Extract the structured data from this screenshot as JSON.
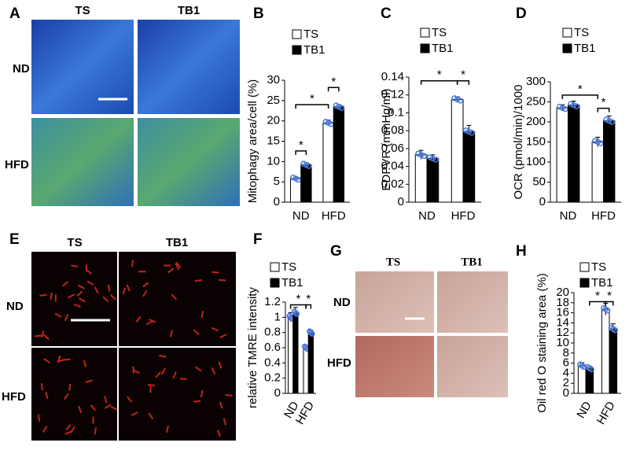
{
  "image_panels": [
    {
      "label": "A",
      "columns": [
        "TS",
        "TB1"
      ],
      "rows": [
        "ND",
        "HFD"
      ]
    },
    {
      "label": "E",
      "columns": [
        "TS",
        "TB1"
      ],
      "rows": [
        "ND",
        "HFD"
      ]
    },
    {
      "label": "G",
      "columns": [
        "TS",
        "TB1"
      ],
      "rows": [
        "ND",
        "HFD"
      ]
    }
  ],
  "chart_data": [
    {
      "type": "bar",
      "label": "B",
      "y_label": "Mitophagy area/cell (%)",
      "categories": [
        "ND",
        "HFD"
      ],
      "series": [
        {
          "name": "TS",
          "color": "#ffffff",
          "values": [
            5.8,
            19.5
          ],
          "errors": [
            0.4,
            0.7
          ]
        },
        {
          "name": "TB1",
          "color": "#000000",
          "values": [
            9.2,
            23.5
          ],
          "errors": [
            0.5,
            0.5
          ]
        }
      ],
      "ylim": [
        0,
        30
      ],
      "yticks": [
        0,
        5,
        10,
        15,
        20,
        25,
        30
      ],
      "annotations": [
        "*",
        "*",
        "*"
      ]
    },
    {
      "type": "bar",
      "label": "C",
      "y_label": "EDPVR (mmHg/ml)",
      "categories": [
        "ND",
        "HFD"
      ],
      "series": [
        {
          "name": "TS",
          "color": "#ffffff",
          "values": [
            0.053,
            0.115
          ],
          "errors": [
            0.005,
            0.003
          ]
        },
        {
          "name": "TB1",
          "color": "#000000",
          "values": [
            0.049,
            0.079
          ],
          "errors": [
            0.004,
            0.007
          ]
        }
      ],
      "ylim": [
        0,
        0.14
      ],
      "yticks": [
        0,
        0.02,
        0.04,
        0.06,
        0.08,
        0.1,
        0.12,
        0.14
      ],
      "annotations": [
        "*",
        "*"
      ]
    },
    {
      "type": "bar",
      "label": "D",
      "y_label": "OCR (pmol/min)/1000",
      "categories": [
        "ND",
        "HFD"
      ],
      "series": [
        {
          "name": "TS",
          "color": "#ffffff",
          "values": [
            235,
            150
          ],
          "errors": [
            8,
            12
          ]
        },
        {
          "name": "TB1",
          "color": "#000000",
          "values": [
            242,
            203
          ],
          "errors": [
            10,
            12
          ]
        }
      ],
      "ylim": [
        0,
        300
      ],
      "yticks": [
        0,
        50,
        100,
        150,
        200,
        250,
        300
      ],
      "annotations": [
        "*",
        "*"
      ]
    },
    {
      "type": "bar",
      "label": "F",
      "y_label": "relative TMRE intensity",
      "categories": [
        "ND",
        "HFD"
      ],
      "series": [
        {
          "name": "TS",
          "color": "#ffffff",
          "values": [
            1.0,
            0.6
          ],
          "errors": [
            0.06,
            0.03
          ]
        },
        {
          "name": "TB1",
          "color": "#000000",
          "values": [
            1.06,
            0.8
          ],
          "errors": [
            0.07,
            0.03
          ]
        }
      ],
      "ylim": [
        0,
        1.2
      ],
      "yticks": [
        0,
        0.2,
        0.4,
        0.6,
        0.8,
        1,
        1.2
      ],
      "annotations": [
        "*",
        "*"
      ]
    },
    {
      "type": "bar",
      "label": "H",
      "y_label": "Oil red O staining area (%)",
      "categories": [
        "ND",
        "HFD"
      ],
      "series": [
        {
          "name": "TS",
          "color": "#ffffff",
          "values": [
            5.5,
            16.7
          ],
          "errors": [
            0.6,
            1.2
          ]
        },
        {
          "name": "TB1",
          "color": "#000000",
          "values": [
            5.0,
            12.8
          ],
          "errors": [
            0.4,
            1.0
          ]
        }
      ],
      "ylim": [
        0,
        20
      ],
      "yticks": [
        0,
        2,
        4,
        6,
        8,
        10,
        12,
        14,
        16,
        18,
        20
      ],
      "annotations": [
        "*",
        "*"
      ]
    }
  ]
}
